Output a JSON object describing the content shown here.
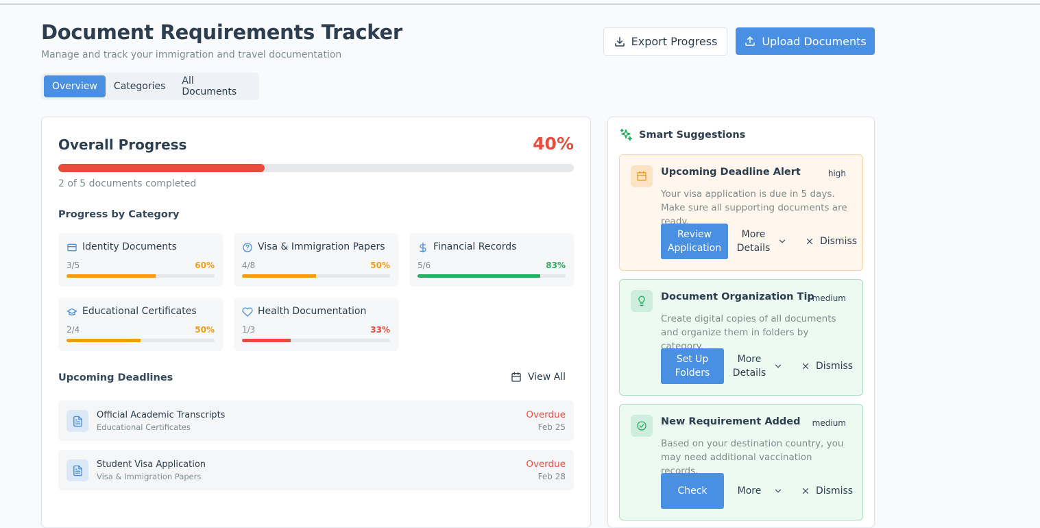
{
  "header": {
    "title": "Document Requirements Tracker",
    "subtitle": "Manage and track your immigration and travel documentation"
  },
  "actions": {
    "export": "Export Progress",
    "upload": "Upload Documents"
  },
  "tabs": [
    "Overview",
    "Categories",
    "All Documents"
  ],
  "overall": {
    "title": "Overall Progress",
    "percent": {
      "value": 40,
      "label": "40%"
    },
    "summary": "2 of 5 documents completed",
    "color": "#e74c3c"
  },
  "categories": {
    "title": "Progress by Category",
    "items": [
      {
        "name": "Identity Documents",
        "count": "3/5",
        "percent": {
          "value": 60,
          "label": "60%"
        },
        "color": "#f39c12",
        "icon": "card"
      },
      {
        "name": "Visa & Immigration Papers",
        "count": "4/8",
        "percent": {
          "value": 50,
          "label": "50%"
        },
        "color": "#f39c12",
        "icon": "help"
      },
      {
        "name": "Financial Records",
        "count": "5/6",
        "percent": {
          "value": 83,
          "label": "83%"
        },
        "color": "#27ae60",
        "icon": "dollar"
      },
      {
        "name": "Educational Certificates",
        "count": "2/4",
        "percent": {
          "value": 50,
          "label": "50%"
        },
        "color": "#f39c12",
        "icon": "cap"
      },
      {
        "name": "Health Documentation",
        "count": "1/3",
        "percent": {
          "value": 33,
          "label": "33%"
        },
        "color": "#e74c3c",
        "icon": "heart"
      }
    ]
  },
  "deadlines": {
    "title": "Upcoming Deadlines",
    "view_all": "View All",
    "items": [
      {
        "name": "Official Academic Transcripts",
        "category": "Educational Certificates",
        "status": "Overdue",
        "date": "Feb 25"
      },
      {
        "name": "Student Visa Application",
        "category": "Visa & Immigration Papers",
        "status": "Overdue",
        "date": "Feb 28"
      }
    ]
  },
  "suggestions": {
    "title": "Smart Suggestions",
    "items": [
      {
        "title": "Upcoming Deadline Alert",
        "priority": "high",
        "text": "Your visa application is due in 5 days. Make sure all supporting documents are ready.",
        "primary": "Review Application",
        "more": "More Details",
        "dismiss": "Dismiss",
        "tone": "orange",
        "icon": "calendar"
      },
      {
        "title": "Document Organization Tip",
        "priority": "medium",
        "text": "Create digital copies of all documents and organize them in folders by category.",
        "primary": "Set Up Folders",
        "more": "More Details",
        "dismiss": "Dismiss",
        "tone": "green",
        "icon": "bulb"
      },
      {
        "title": "New Requirement Added",
        "priority": "medium",
        "text": "Based on your destination country, you may need additional vaccination records.",
        "primary": "Check",
        "more": "More",
        "dismiss": "Dismiss",
        "tone": "green",
        "icon": "check"
      }
    ]
  }
}
